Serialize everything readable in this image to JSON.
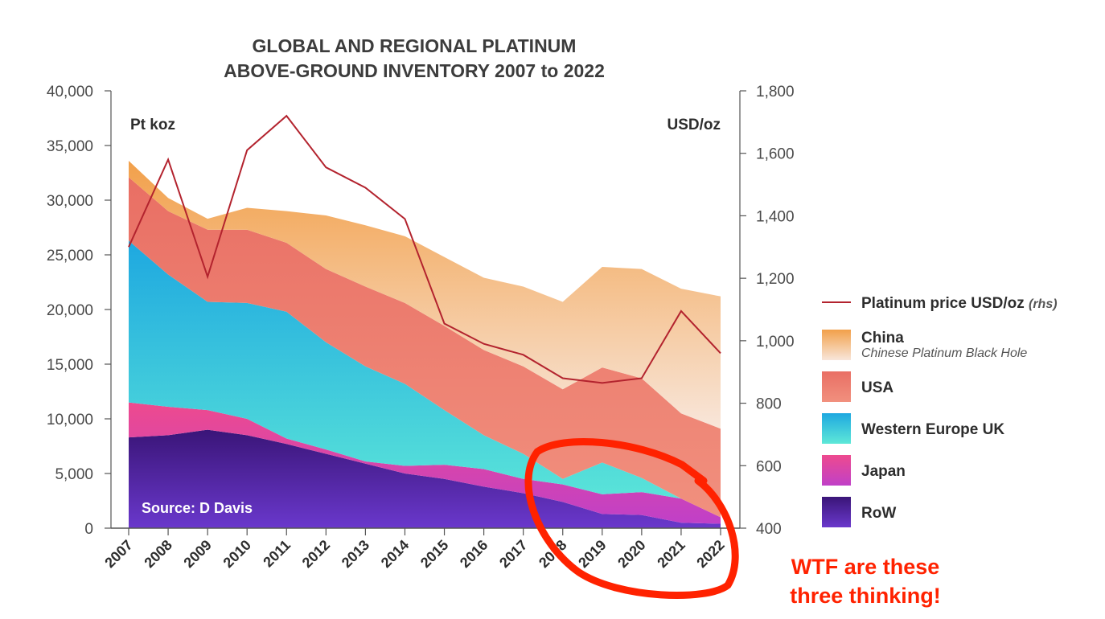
{
  "chart_data": {
    "type": "area",
    "title_lines": [
      "GLOBAL AND REGIONAL PLATINUM",
      "ABOVE-GROUND INVENTORY 2007 to 2022"
    ],
    "ylabel_left": "Pt koz",
    "ylabel_right": "USD/oz",
    "ylim_left": [
      0,
      40000
    ],
    "ylim_right": [
      400,
      1800
    ],
    "yticks_left": [
      "0",
      "5,000",
      "10,000",
      "15,000",
      "20,000",
      "25,000",
      "30,000",
      "35,000",
      "40,000"
    ],
    "yticks_right": [
      "400",
      "600",
      "800",
      "1,000",
      "1,200",
      "1,400",
      "1,600",
      "1,800"
    ],
    "categories": [
      "2007",
      "2008",
      "2009",
      "2010",
      "2011",
      "2012",
      "2013",
      "2014",
      "2015",
      "2016",
      "2017",
      "2018",
      "2019",
      "2020",
      "2021",
      "2022"
    ],
    "stacked_series": [
      {
        "name": "RoW",
        "color": "#4a1fa0",
        "values": [
          8300,
          8500,
          9000,
          8500,
          7700,
          6800,
          5900,
          5000,
          4500,
          3800,
          3200,
          2400,
          1300,
          1200,
          500,
          400
        ]
      },
      {
        "name": "Japan",
        "color": "#e64a9a",
        "values": [
          3200,
          2600,
          1800,
          1500,
          500,
          400,
          200,
          700,
          1300,
          1600,
          1300,
          1600,
          1800,
          2100,
          2200,
          600
        ]
      },
      {
        "name": "Western Europe UK",
        "color": "#33c2dd",
        "values": [
          14800,
          12100,
          9900,
          10600,
          11600,
          9800,
          8700,
          7500,
          5000,
          3100,
          2300,
          500,
          2900,
          1300,
          0,
          0
        ]
      },
      {
        "name": "USA",
        "color": "#ec7a6e",
        "values": [
          5800,
          5800,
          6600,
          6700,
          6300,
          6700,
          7300,
          7400,
          7700,
          7800,
          8000,
          8200,
          8700,
          9100,
          7800,
          8100
        ]
      },
      {
        "name": "China",
        "color": "#f2a04a",
        "subtitle": "Chinese Platinum Black Hole",
        "values": [
          1500,
          1200,
          1000,
          2000,
          2900,
          4900,
          5600,
          6100,
          6300,
          6600,
          7300,
          8000,
          9200,
          10000,
          11400,
          12100
        ]
      }
    ],
    "line_series": {
      "name": "Platinum price USD/oz",
      "name_suffix": "(rhs)",
      "axis": "right",
      "color": "#b3232e",
      "values": [
        1300,
        1580,
        1205,
        1610,
        1720,
        1555,
        1490,
        1390,
        1055,
        990,
        955,
        880,
        865,
        880,
        1095,
        960
      ]
    },
    "source": "Source: D Davis",
    "annotation": [
      "WTF are these",
      "three thinking!"
    ]
  }
}
